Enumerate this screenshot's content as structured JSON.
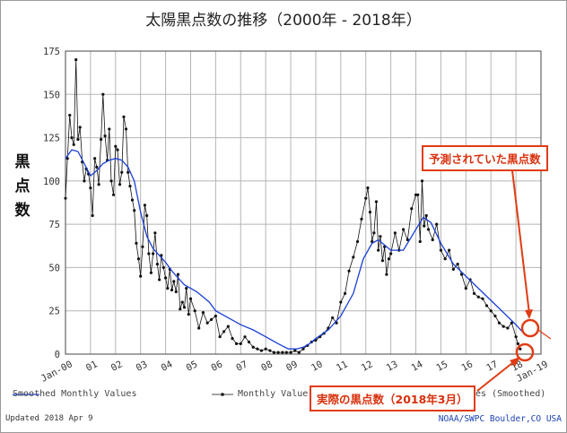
{
  "chart_data": {
    "type": "line",
    "title": "太陽黒点数の推移（2000年 - 2018年）",
    "ylabel": "黒\n点\n数",
    "ylim": [
      0,
      175
    ],
    "yticks": [
      0,
      25,
      50,
      75,
      100,
      125,
      150,
      175
    ],
    "xticks": [
      "Jan-00",
      "01",
      "02",
      "03",
      "04",
      "05",
      "06",
      "07",
      "08",
      "09",
      "10",
      "11",
      "12",
      "13",
      "14",
      "15",
      "16",
      "17",
      "18",
      "Jan-19"
    ],
    "grid": true,
    "legend_position": "bottom",
    "series": [
      {
        "name": "Smoothed Monthly Values",
        "color": "#1a3fd6",
        "x": [
          2000.0,
          2000.25,
          2000.5,
          2000.75,
          2001.0,
          2001.25,
          2001.5,
          2001.75,
          2002.0,
          2002.25,
          2002.5,
          2002.75,
          2003.0,
          2003.25,
          2003.5,
          2003.75,
          2004.0,
          2004.25,
          2004.5,
          2004.75,
          2005.0,
          2005.25,
          2005.5,
          2005.75,
          2006.0,
          2006.5,
          2007.0,
          2007.5,
          2008.0,
          2008.5,
          2008.9,
          2009.25,
          2009.5,
          2009.75,
          2010.0,
          2010.5,
          2011.0,
          2011.5,
          2011.9,
          2012.25,
          2012.5,
          2013.0,
          2013.5,
          2014.0,
          2014.3,
          2014.6,
          2015.0,
          2015.5,
          2016.0,
          2016.5,
          2017.0,
          2017.5,
          2018.0,
          2018.25
        ],
        "y": [
          113,
          118,
          117,
          110,
          103,
          106,
          110,
          112,
          113,
          112,
          108,
          100,
          82,
          68,
          61,
          57,
          53,
          48,
          44,
          40,
          38,
          36,
          33,
          30,
          25,
          21,
          17,
          14,
          10,
          6,
          3,
          3,
          4,
          6,
          9,
          14,
          22,
          35,
          55,
          64,
          66,
          60,
          60,
          72,
          79,
          76,
          64,
          52,
          45,
          38,
          31,
          24,
          17,
          13
        ]
      },
      {
        "name": "Monthly Values",
        "color": "#111111",
        "x": [
          2000.0,
          2000.08,
          2000.17,
          2000.25,
          2000.33,
          2000.42,
          2000.5,
          2000.58,
          2000.67,
          2000.75,
          2000.83,
          2000.92,
          2001.0,
          2001.08,
          2001.17,
          2001.25,
          2001.33,
          2001.42,
          2001.5,
          2001.58,
          2001.67,
          2001.75,
          2001.83,
          2001.92,
          2002.0,
          2002.08,
          2002.17,
          2002.25,
          2002.33,
          2002.42,
          2002.5,
          2002.58,
          2002.67,
          2002.75,
          2002.83,
          2002.92,
          2003.0,
          2003.08,
          2003.17,
          2003.25,
          2003.33,
          2003.42,
          2003.5,
          2003.58,
          2003.67,
          2003.75,
          2003.83,
          2003.92,
          2004.0,
          2004.08,
          2004.17,
          2004.25,
          2004.33,
          2004.42,
          2004.5,
          2004.58,
          2004.67,
          2004.75,
          2004.83,
          2004.92,
          2005.0,
          2005.17,
          2005.33,
          2005.5,
          2005.67,
          2005.83,
          2006.0,
          2006.17,
          2006.33,
          2006.5,
          2006.67,
          2006.83,
          2007.0,
          2007.17,
          2007.33,
          2007.5,
          2007.67,
          2007.83,
          2008.0,
          2008.17,
          2008.33,
          2008.5,
          2008.67,
          2008.83,
          2009.0,
          2009.17,
          2009.33,
          2009.5,
          2009.67,
          2009.83,
          2010.0,
          2010.17,
          2010.33,
          2010.5,
          2010.67,
          2010.83,
          2011.0,
          2011.17,
          2011.33,
          2011.5,
          2011.67,
          2011.83,
          2012.0,
          2012.08,
          2012.17,
          2012.25,
          2012.33,
          2012.42,
          2012.5,
          2012.58,
          2012.67,
          2012.75,
          2012.83,
          2012.92,
          2013.0,
          2013.17,
          2013.33,
          2013.5,
          2013.67,
          2013.83,
          2014.0,
          2014.08,
          2014.17,
          2014.25,
          2014.33,
          2014.42,
          2014.5,
          2014.67,
          2014.83,
          2015.0,
          2015.17,
          2015.33,
          2015.5,
          2015.67,
          2015.83,
          2016.0,
          2016.17,
          2016.33,
          2016.5,
          2016.67,
          2016.83,
          2017.0,
          2017.17,
          2017.33,
          2017.5,
          2017.67,
          2017.83,
          2018.0,
          2018.08,
          2018.17
        ],
        "y": [
          90,
          113,
          138,
          125,
          121,
          170,
          124,
          131,
          111,
          100,
          107,
          104,
          96,
          80,
          113,
          108,
          98,
          124,
          150,
          126,
          112,
          130,
          100,
          92,
          120,
          118,
          98,
          105,
          137,
          130,
          105,
          97,
          89,
          83,
          64,
          55,
          45,
          62,
          86,
          80,
          58,
          47,
          58,
          70,
          52,
          43,
          57,
          50,
          44,
          38,
          49,
          37,
          42,
          36,
          46,
          26,
          30,
          27,
          38,
          23,
          32,
          25,
          15,
          24,
          18,
          20,
          22,
          10,
          13,
          16,
          9,
          6,
          6,
          10,
          7,
          4,
          3,
          2,
          3,
          2,
          1,
          1,
          1,
          1,
          1,
          2,
          1,
          3,
          5,
          7,
          8,
          10,
          12,
          15,
          21,
          18,
          30,
          35,
          48,
          56,
          65,
          78,
          90,
          96,
          82,
          65,
          70,
          88,
          60,
          68,
          54,
          62,
          46,
          55,
          58,
          70,
          60,
          72,
          66,
          84,
          92,
          92,
          65,
          100,
          74,
          80,
          72,
          66,
          75,
          60,
          55,
          60,
          49,
          52,
          46,
          38,
          43,
          35,
          33,
          32,
          28,
          25,
          22,
          18,
          16,
          15,
          18,
          10,
          6,
          3
        ]
      }
    ],
    "legend": [
      {
        "label": "Smoothed Monthly Values",
        "marker": "line"
      },
      {
        "label": "Monthly Values",
        "marker": "dot-line"
      },
      {
        "label": "Predicted Values (Smoothed)",
        "marker": "line"
      }
    ],
    "annotations": [
      {
        "text": "予測されていた黒点数"
      },
      {
        "text": "実際の黒点数（2018年3月）"
      }
    ]
  },
  "legend_labels": {
    "smoothed": "Smoothed Monthly Values",
    "monthly": "Monthly Value",
    "predicted": "es (Smoothed)"
  },
  "footer": {
    "updated": "Updated 2018 Apr  9",
    "source": "NOAA/SWPC Boulder,CO USA"
  },
  "colors": {
    "smoothed": "#1a3fd6",
    "monthly": "#111111",
    "callout": "#e03c14"
  }
}
